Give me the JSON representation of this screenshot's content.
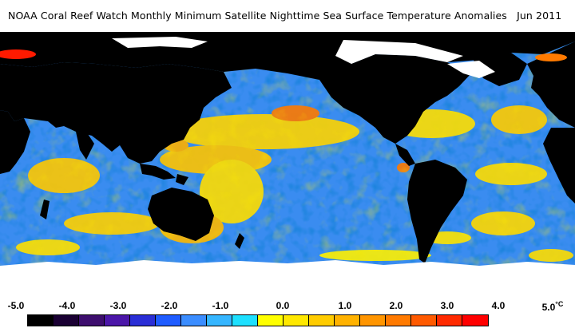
{
  "title": "NOAA Coral Reef Watch Monthly Minimum Satellite Nighttime Sea Surface Temperature Anomalies",
  "date": "Jun 2011",
  "colorbar": {
    "ticks": [
      "-5.0",
      "-4.0",
      "-3.0",
      "-2.0",
      "-1.0",
      "0.0",
      "1.0",
      "2.0",
      "3.0",
      "4.0",
      "5.0"
    ],
    "unit": "°C",
    "colors": [
      "#000000",
      "#1a0033",
      "#3d0e6e",
      "#4b16a8",
      "#2a2ed6",
      "#1f5cff",
      "#3b8dff",
      "#36b6ff",
      "#1ee0ff",
      "#ffff00",
      "#ffe800",
      "#ffcc00",
      "#ffb200",
      "#ff9500",
      "#ff7a00",
      "#ff5a00",
      "#ff2a00",
      "#ff0000"
    ]
  },
  "map": {
    "land_color": "#000000",
    "ice_color": "#ffffff"
  }
}
